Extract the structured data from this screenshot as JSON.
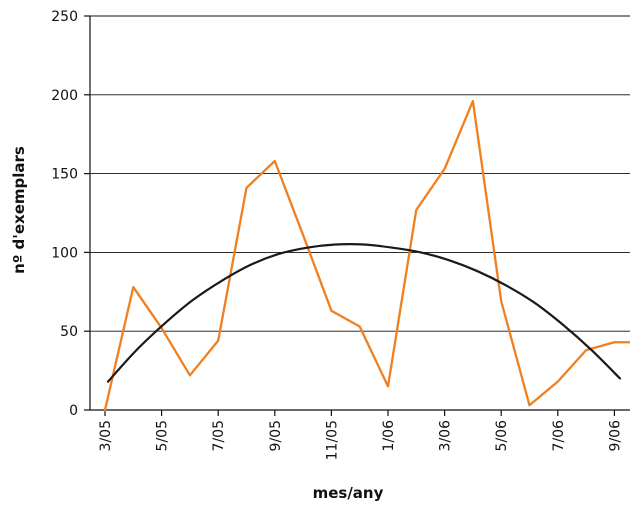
{
  "chart_data": {
    "type": "line",
    "xlabel": "mes/any",
    "ylabel": "nº d'exemplars",
    "ylim": [
      0,
      250
    ],
    "yticks": [
      0,
      50,
      100,
      150,
      200,
      250
    ],
    "x_tick_labels": [
      "3/05",
      "5/05",
      "7/05",
      "9/05",
      "11/05",
      "1/06",
      "3/06",
      "5/06",
      "7/06",
      "9/06"
    ],
    "grid": "horizontal",
    "series": [
      {
        "kind": "observed",
        "color": "#F07F1F",
        "x": [
          "3/05",
          "4/05",
          "5/05",
          "6/05",
          "7/05",
          "8/05",
          "9/05",
          "10/05",
          "11/05",
          "12/05",
          "1/06",
          "2/06",
          "3/06",
          "4/06",
          "5/06",
          "6/06",
          "7/06",
          "8/06",
          "9/06",
          "10/06"
        ],
        "values": [
          0,
          78,
          52,
          22,
          44,
          141,
          158,
          111,
          63,
          53,
          15,
          127,
          153,
          196,
          69,
          3,
          18,
          38,
          43,
          43
        ]
      },
      {
        "kind": "trend",
        "color": "#1a1a1a",
        "x": [
          "3/05",
          "4/05",
          "5/05",
          "6/05",
          "7/05",
          "8/05",
          "9/05",
          "10/05",
          "11/05",
          "12/05",
          "1/06",
          "2/06",
          "3/06",
          "4/06",
          "5/06",
          "6/06",
          "7/06",
          "8/06",
          "9/06",
          "10/06"
        ],
        "values": [
          18,
          38,
          55,
          70,
          82,
          92,
          99,
          103,
          105,
          105,
          103,
          100,
          95,
          88,
          79,
          68,
          54,
          38,
          20,
          20
        ]
      }
    ]
  }
}
